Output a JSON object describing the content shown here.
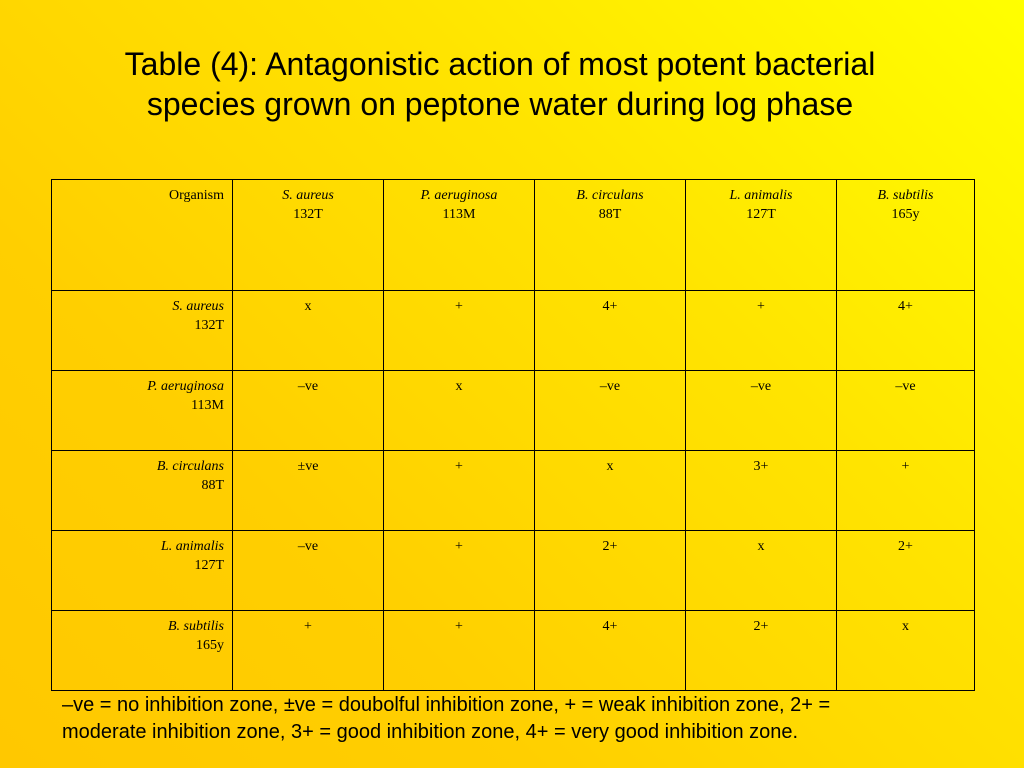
{
  "title": {
    "line1": "Table (4): Antagonistic action of most potent bacterial",
    "line2": "species grown on peptone water during log phase"
  },
  "table": {
    "corner_label": "Organism",
    "columns": [
      {
        "name": "S. aureus",
        "code": "132T"
      },
      {
        "name": "P. aeruginosa",
        "code": "113M"
      },
      {
        "name": "B. circulans",
        "code": "88T"
      },
      {
        "name": "L. animalis",
        "code": "127T"
      },
      {
        "name": "B. subtilis",
        "code": "165y"
      }
    ],
    "rows": [
      {
        "name": "S. aureus",
        "code": "132T",
        "cells": [
          "x",
          "+",
          "4+",
          "+",
          "4+"
        ]
      },
      {
        "name": "P. aeruginosa",
        "code": "113M",
        "cells": [
          "–ve",
          "x",
          "–ve",
          "–ve",
          "–ve"
        ]
      },
      {
        "name": "B. circulans",
        "code": "88T",
        "cells": [
          "±ve",
          "+",
          "x",
          "3+",
          "+"
        ]
      },
      {
        "name": "L. animalis",
        "code": "127T",
        "cells": [
          "–ve",
          "+",
          "2+",
          "x",
          "2+"
        ]
      },
      {
        "name": "B. subtilis",
        "code": "165y",
        "cells": [
          "+",
          "+",
          "4+",
          "2+",
          "x"
        ]
      }
    ]
  },
  "legend": {
    "line1": "–ve = no inhibition zone, ±ve = doubolful inhibition zone, + = weak inhibition zone, 2+ =",
    "line2": "moderate inhibition zone, 3+ = good inhibition zone, 4+ = very good inhibition zone."
  }
}
